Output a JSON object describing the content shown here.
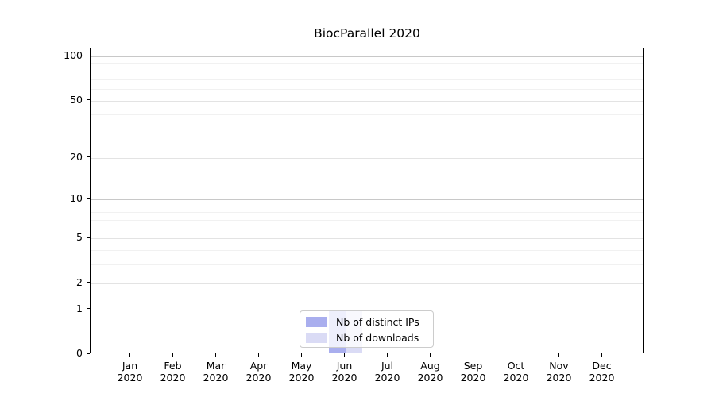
{
  "title": "BiocParallel 2020",
  "chart_data": {
    "type": "bar",
    "title": "BiocParallel 2020",
    "x_tick_labels": [
      [
        "Jan",
        "2020"
      ],
      [
        "Feb",
        "2020"
      ],
      [
        "Mar",
        "2020"
      ],
      [
        "Apr",
        "2020"
      ],
      [
        "May",
        "2020"
      ],
      [
        "Jun",
        "2020"
      ],
      [
        "Jul",
        "2020"
      ],
      [
        "Aug",
        "2020"
      ],
      [
        "Sep",
        "2020"
      ],
      [
        "Oct",
        "2020"
      ],
      [
        "Nov",
        "2020"
      ],
      [
        "Dec",
        "2020"
      ]
    ],
    "series": [
      {
        "name": "Nb of distinct IPs",
        "color": "#a9aeee",
        "values": [
          0,
          0,
          0,
          0,
          0,
          1,
          0,
          0,
          0,
          0,
          0,
          0
        ]
      },
      {
        "name": "Nb of downloads",
        "color": "#dadbf5",
        "values": [
          0,
          0,
          0,
          0,
          0,
          1,
          0,
          0,
          0,
          0,
          0,
          0
        ]
      }
    ],
    "yscale": "log1p",
    "ylim": [
      0,
      113
    ],
    "yticks": [
      0,
      1,
      2,
      5,
      10,
      20,
      50,
      100
    ],
    "yticks_minor": [
      3,
      4,
      6,
      7,
      8,
      9,
      30,
      40,
      60,
      70,
      80,
      90
    ],
    "grid": "horizontal",
    "legend_position": "bottom-center"
  },
  "colors": {
    "bar_distinct_ips": "#a9aeee",
    "bar_downloads": "#dadbf5",
    "grid_major": "#c8c8c8",
    "grid_mid": "#e3e3e3",
    "grid_minor": "#f1f1f1",
    "axis": "#000000",
    "legend_border": "#cccccc"
  }
}
